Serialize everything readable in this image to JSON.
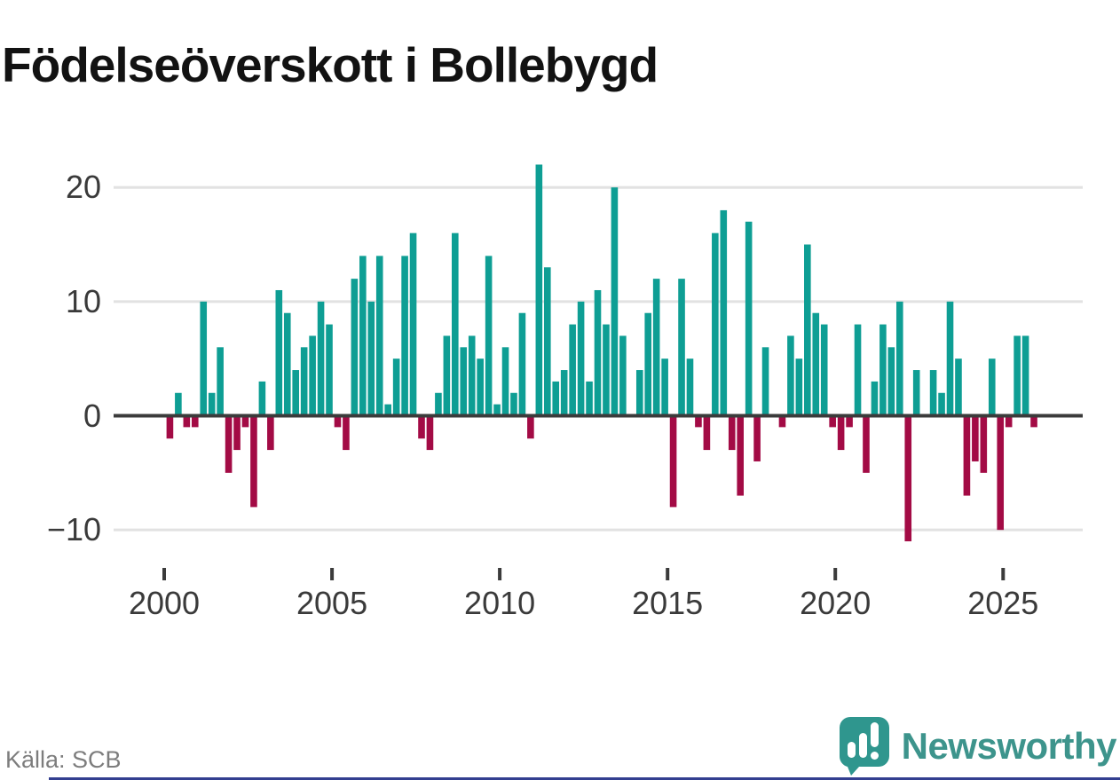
{
  "title": "Födelseöverskott i Bollebygd",
  "source_label": "Källa: SCB",
  "branding": {
    "name": "Newsworthy",
    "logo_icon": "newsworthy-speech-bubble-bar-chart-icon"
  },
  "colors": {
    "positive_bar": "#0e9e94",
    "negative_bar": "#a30b45",
    "gridline": "#e2e2e2",
    "zero_line": "#3b3b3b",
    "axis_text": "#3a3a3a",
    "title_text": "#121212",
    "source_text": "#7d7d7d",
    "brand_teal": "#3d948c",
    "footer_rule_blue": "#333f90"
  },
  "chart_data": {
    "type": "bar",
    "title": "Födelseöverskott i Bollebygd",
    "xlabel": "",
    "ylabel": "",
    "x_unit": "quarter",
    "x_range": [
      "2000 Q1",
      "2025 Q4"
    ],
    "ylim": [
      -12,
      23
    ],
    "grid": true,
    "legend": false,
    "y_ticks": [
      20,
      10,
      0,
      -10
    ],
    "y_tick_labels": [
      "20",
      "10",
      "0",
      "−10"
    ],
    "x_tick_years": [
      2000,
      2005,
      2010,
      2015,
      2020,
      2025
    ],
    "x_tick_labels": [
      "2000",
      "2005",
      "2010",
      "2015",
      "2020",
      "2025"
    ],
    "years": [
      {
        "year": 2000,
        "q": [
          -2,
          2,
          -1,
          -1
        ]
      },
      {
        "year": 2001,
        "q": [
          10,
          2,
          6,
          -5
        ]
      },
      {
        "year": 2002,
        "q": [
          -3,
          -1,
          -8,
          3
        ]
      },
      {
        "year": 2003,
        "q": [
          -3,
          11,
          9,
          4
        ]
      },
      {
        "year": 2004,
        "q": [
          6,
          7,
          10,
          8
        ]
      },
      {
        "year": 2005,
        "q": [
          -1,
          -3,
          12,
          14
        ]
      },
      {
        "year": 2006,
        "q": [
          10,
          14,
          1,
          5
        ]
      },
      {
        "year": 2007,
        "q": [
          14,
          16,
          -2,
          -3
        ]
      },
      {
        "year": 2008,
        "q": [
          2,
          7,
          16,
          6
        ]
      },
      {
        "year": 2009,
        "q": [
          7,
          5,
          14,
          1
        ]
      },
      {
        "year": 2010,
        "q": [
          6,
          2,
          9,
          -2
        ]
      },
      {
        "year": 2011,
        "q": [
          22,
          13,
          3,
          4
        ]
      },
      {
        "year": 2012,
        "q": [
          8,
          10,
          3,
          11
        ]
      },
      {
        "year": 2013,
        "q": [
          8,
          20,
          7,
          0
        ]
      },
      {
        "year": 2014,
        "q": [
          4,
          9,
          12,
          5
        ]
      },
      {
        "year": 2015,
        "q": [
          -8,
          12,
          5,
          -1
        ]
      },
      {
        "year": 2016,
        "q": [
          -3,
          16,
          18,
          -3
        ]
      },
      {
        "year": 2017,
        "q": [
          -7,
          17,
          -4,
          6
        ]
      },
      {
        "year": 2018,
        "q": [
          0,
          -1,
          7,
          5
        ]
      },
      {
        "year": 2019,
        "q": [
          15,
          9,
          8,
          -1
        ]
      },
      {
        "year": 2020,
        "q": [
          -3,
          -1,
          8,
          -5
        ]
      },
      {
        "year": 2021,
        "q": [
          3,
          8,
          6,
          10
        ]
      },
      {
        "year": 2022,
        "q": [
          -11,
          4,
          0,
          4
        ]
      },
      {
        "year": 2023,
        "q": [
          2,
          10,
          5,
          -7
        ]
      },
      {
        "year": 2024,
        "q": [
          -4,
          -5,
          5,
          -10
        ]
      },
      {
        "year": 2025,
        "q": [
          -1,
          7,
          7,
          -1
        ]
      }
    ]
  }
}
